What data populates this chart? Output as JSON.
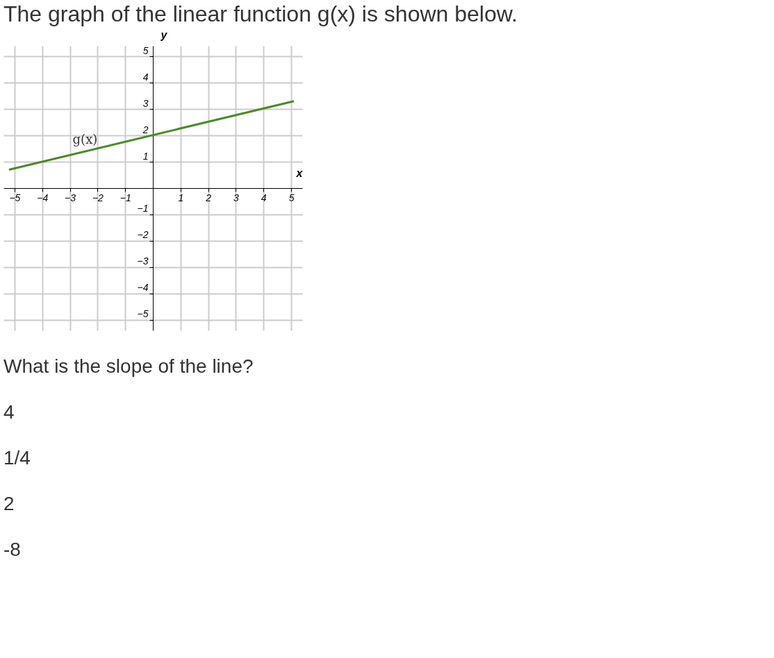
{
  "chart_data": {
    "type": "line",
    "title": "The graph of the linear function g(x) is shown below.",
    "xlabel": "x",
    "ylabel": "y",
    "series": [
      {
        "name": "g(x)",
        "color": "#4a8a2a",
        "x": [
          -5.2,
          5.1
        ],
        "values": [
          0.7,
          3.3
        ]
      }
    ],
    "xlim": [
      -5.4,
      5.4
    ],
    "ylim": [
      -5.4,
      5.4
    ],
    "xticks": [
      -5,
      -4,
      -3,
      -2,
      -1,
      1,
      2,
      3,
      4,
      5
    ],
    "yticks": [
      -5,
      -4,
      -3,
      -2,
      -1,
      1,
      2,
      3,
      4,
      5
    ],
    "grid": true,
    "annotations": [
      "What is the slope of the line?",
      "4",
      "1/4",
      "2",
      "-8"
    ]
  }
}
